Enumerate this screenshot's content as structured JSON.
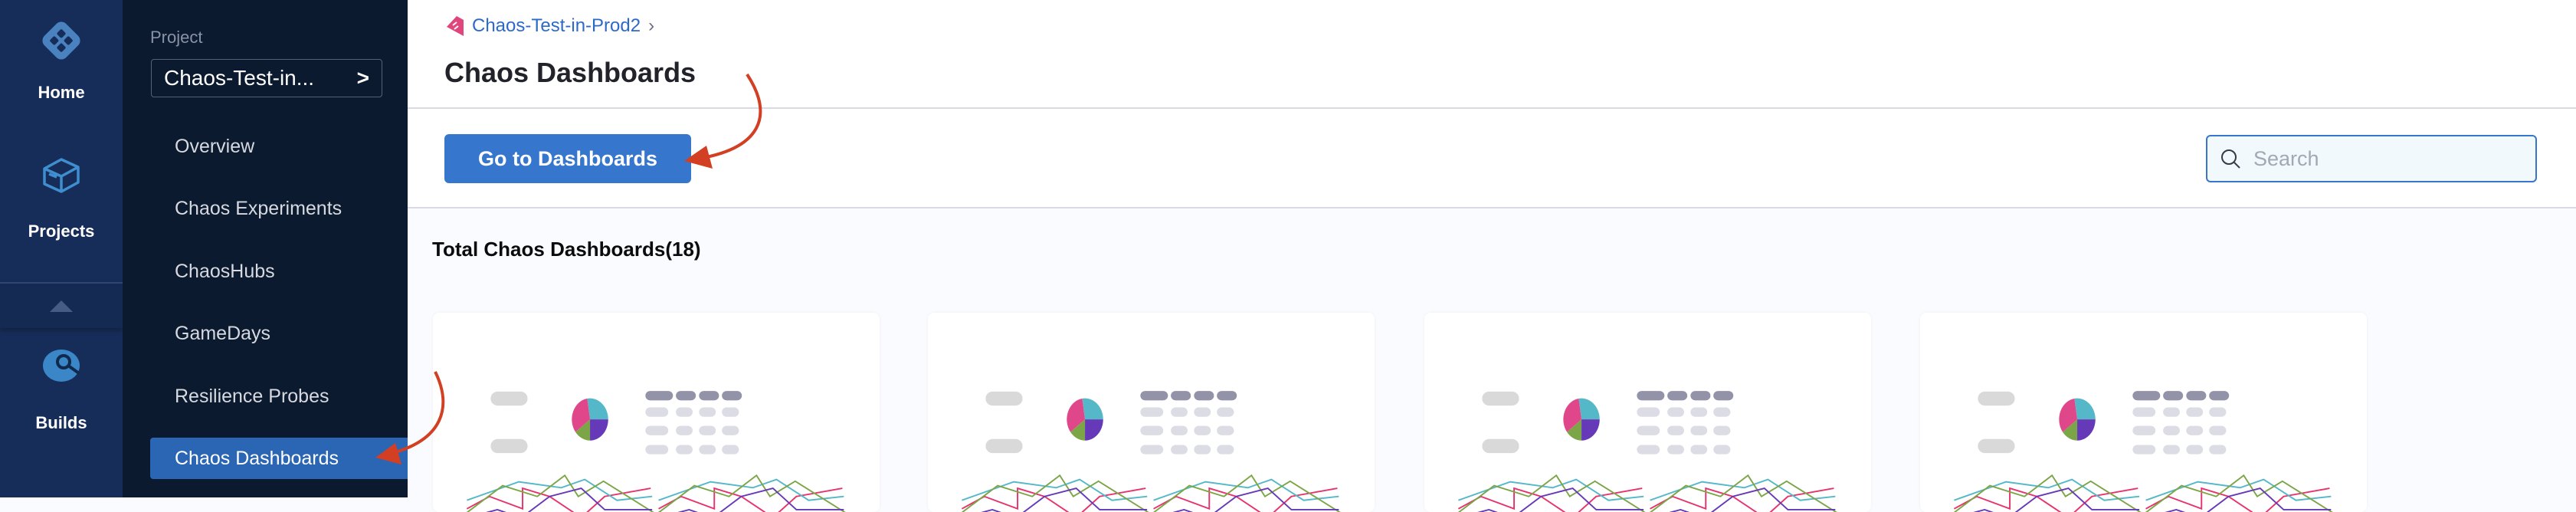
{
  "nav": {
    "items": [
      {
        "label": "Home",
        "icon": "harness-logo-icon"
      },
      {
        "label": "Projects",
        "icon": "cube-icon"
      },
      {
        "label": "Builds",
        "icon": "builds-icon"
      }
    ]
  },
  "sidebar": {
    "project_label": "Project",
    "project_value": "Chaos-Test-in...",
    "items": [
      {
        "label": "Overview"
      },
      {
        "label": "Chaos Experiments"
      },
      {
        "label": "ChaosHubs"
      },
      {
        "label": "GameDays"
      },
      {
        "label": "Resilience Probes"
      },
      {
        "label": "Chaos Dashboards",
        "active": true
      }
    ]
  },
  "header": {
    "breadcrumb": "Chaos-Test-in-Prod2",
    "title": "Chaos Dashboards"
  },
  "toolbar": {
    "go_button": "Go to Dashboards",
    "search_placeholder": "Search",
    "search_value": ""
  },
  "content": {
    "total_label": "Total Chaos Dashboards(18)",
    "card_count_visible": 4
  },
  "colors": {
    "accent": "#3676cc",
    "nav_bg": "#172d59",
    "sidebar_bg": "#0b1a2e",
    "annotation_arrow": "#d33f22"
  }
}
